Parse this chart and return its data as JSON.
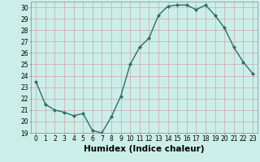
{
  "x": [
    0,
    1,
    2,
    3,
    4,
    5,
    6,
    7,
    8,
    9,
    10,
    11,
    12,
    13,
    14,
    15,
    16,
    17,
    18,
    19,
    20,
    21,
    22,
    23
  ],
  "y": [
    23.5,
    21.5,
    21.0,
    20.8,
    20.5,
    20.7,
    19.2,
    19.0,
    20.4,
    22.2,
    25.0,
    26.5,
    27.3,
    29.3,
    30.1,
    30.2,
    30.2,
    29.8,
    30.2,
    29.3,
    28.2,
    26.5,
    25.2,
    24.2
  ],
  "line_color": "#2d6e6e",
  "marker": "D",
  "marker_size": 2.0,
  "bg_color": "#cceee8",
  "grid_major_color": "#b8d8d0",
  "grid_minor_color": "#d4eee8",
  "xlabel": "Humidex (Indice chaleur)",
  "xlim": [
    -0.5,
    23.5
  ],
  "ylim": [
    19,
    30.5
  ],
  "yticks": [
    19,
    20,
    21,
    22,
    23,
    24,
    25,
    26,
    27,
    28,
    29,
    30
  ],
  "xticks": [
    0,
    1,
    2,
    3,
    4,
    5,
    6,
    7,
    8,
    9,
    10,
    11,
    12,
    13,
    14,
    15,
    16,
    17,
    18,
    19,
    20,
    21,
    22,
    23
  ],
  "tick_fontsize": 5.5,
  "xlabel_fontsize": 7.5,
  "line_width": 1.0
}
